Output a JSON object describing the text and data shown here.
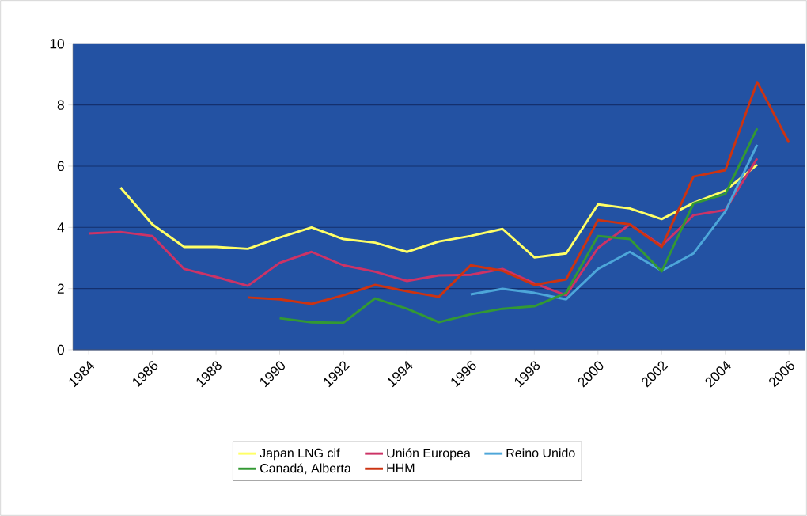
{
  "chart_data": {
    "type": "line",
    "x": [
      1984,
      1985,
      1986,
      1987,
      1988,
      1989,
      1990,
      1991,
      1992,
      1993,
      1994,
      1995,
      1996,
      1997,
      1998,
      1999,
      2000,
      2001,
      2002,
      2003,
      2004,
      2005,
      2006
    ],
    "xlim": [
      1983.5,
      2006.5
    ],
    "xticks": [
      1984,
      1986,
      1988,
      1990,
      1992,
      1994,
      1996,
      1998,
      2000,
      2002,
      2004,
      2006
    ],
    "ylim": [
      0,
      10
    ],
    "yticks": [
      0,
      2,
      4,
      6,
      8,
      10
    ],
    "grid": "y",
    "legend": "bottom",
    "series": [
      {
        "name": "Japan LNG cif",
        "color": "#ffff66",
        "values": [
          null,
          5.3,
          4.1,
          3.36,
          3.36,
          3.3,
          3.67,
          4.0,
          3.62,
          3.5,
          3.2,
          3.54,
          3.72,
          3.95,
          3.02,
          3.15,
          4.75,
          4.62,
          4.27,
          4.8,
          5.2,
          6.05,
          null
        ]
      },
      {
        "name": "Unión Europea",
        "color": "#cc3366",
        "values": [
          3.8,
          3.85,
          3.72,
          2.64,
          2.38,
          2.09,
          2.84,
          3.2,
          2.76,
          2.55,
          2.25,
          2.43,
          2.45,
          2.64,
          2.17,
          1.78,
          3.33,
          4.1,
          3.4,
          4.4,
          4.57,
          6.25,
          null
        ]
      },
      {
        "name": "Reino Unido",
        "color": "#4da6d9",
        "values": [
          null,
          null,
          null,
          null,
          null,
          null,
          null,
          null,
          null,
          null,
          null,
          null,
          1.81,
          1.99,
          1.86,
          1.65,
          2.64,
          3.2,
          2.58,
          3.15,
          4.52,
          6.7,
          null
        ]
      },
      {
        "name": "Canadá, Alberta",
        "color": "#339933",
        "values": [
          null,
          null,
          null,
          null,
          null,
          null,
          1.03,
          0.9,
          0.88,
          1.68,
          1.34,
          0.9,
          1.16,
          1.34,
          1.42,
          1.86,
          3.72,
          3.62,
          2.56,
          4.78,
          5.09,
          7.24,
          null
        ]
      },
      {
        "name": "HHM",
        "color": "#cc3311",
        "values": [
          null,
          null,
          null,
          null,
          null,
          1.71,
          1.65,
          1.5,
          1.78,
          2.12,
          1.91,
          1.73,
          2.76,
          2.58,
          2.12,
          2.3,
          4.24,
          4.1,
          3.36,
          5.66,
          5.87,
          8.75,
          6.77
        ]
      }
    ]
  }
}
